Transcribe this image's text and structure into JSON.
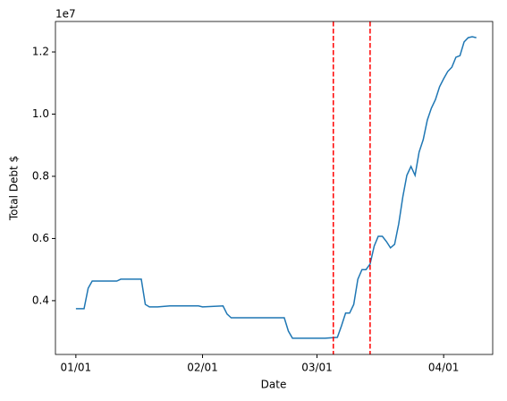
{
  "chart_data": {
    "type": "line",
    "x_label": "Date",
    "y_label": "Total Debt $",
    "y_offset_label": "1e7",
    "x": [
      "01/01",
      "01/03",
      "01/04",
      "01/05",
      "01/11",
      "01/12",
      "01/14",
      "01/17",
      "01/18",
      "01/19",
      "01/21",
      "01/24",
      "01/31",
      "02/01",
      "02/06",
      "02/07",
      "02/08",
      "02/21",
      "02/22",
      "02/23",
      "03/03",
      "03/06",
      "03/07",
      "03/08",
      "03/09",
      "03/10",
      "03/11",
      "03/12",
      "03/13",
      "03/14",
      "03/15",
      "03/16",
      "03/17",
      "03/18",
      "03/19",
      "03/20",
      "03/21",
      "03/22",
      "03/23",
      "03/24",
      "03/25",
      "03/26",
      "03/27",
      "03/28",
      "03/29",
      "03/30",
      "03/31",
      "04/01",
      "04/02",
      "04/03",
      "04/04",
      "04/05",
      "04/06",
      "04/07",
      "04/08",
      "04/09"
    ],
    "series": [
      {
        "color": "#1f77b4",
        "values": [
          0.374,
          0.374,
          0.44,
          0.463,
          0.463,
          0.469,
          0.469,
          0.469,
          0.388,
          0.38,
          0.38,
          0.383,
          0.383,
          0.38,
          0.383,
          0.357,
          0.345,
          0.345,
          0.302,
          0.279,
          0.279,
          0.282,
          0.319,
          0.36,
          0.36,
          0.388,
          0.469,
          0.5,
          0.5,
          0.518,
          0.576,
          0.607,
          0.607,
          0.59,
          0.57,
          0.581,
          0.647,
          0.734,
          0.803,
          0.832,
          0.803,
          0.878,
          0.918,
          0.981,
          1.019,
          1.047,
          1.088,
          1.114,
          1.137,
          1.151,
          1.183,
          1.188,
          1.232,
          1.246,
          1.249,
          1.246
        ]
      }
    ],
    "vlines": [
      {
        "x": "03/05",
        "color": "#ff0000"
      },
      {
        "x": "03/14",
        "color": "#ff0000"
      }
    ],
    "xlim": [
      "12/27",
      "04/13"
    ],
    "xticks": [
      "01/01",
      "02/01",
      "03/01",
      "04/01"
    ],
    "ylim": [
      0.227,
      1.298
    ],
    "yticks": [
      0.4,
      0.6,
      0.8,
      {
        "value": 1,
        "label": "1.0"
      },
      1.2
    ]
  }
}
